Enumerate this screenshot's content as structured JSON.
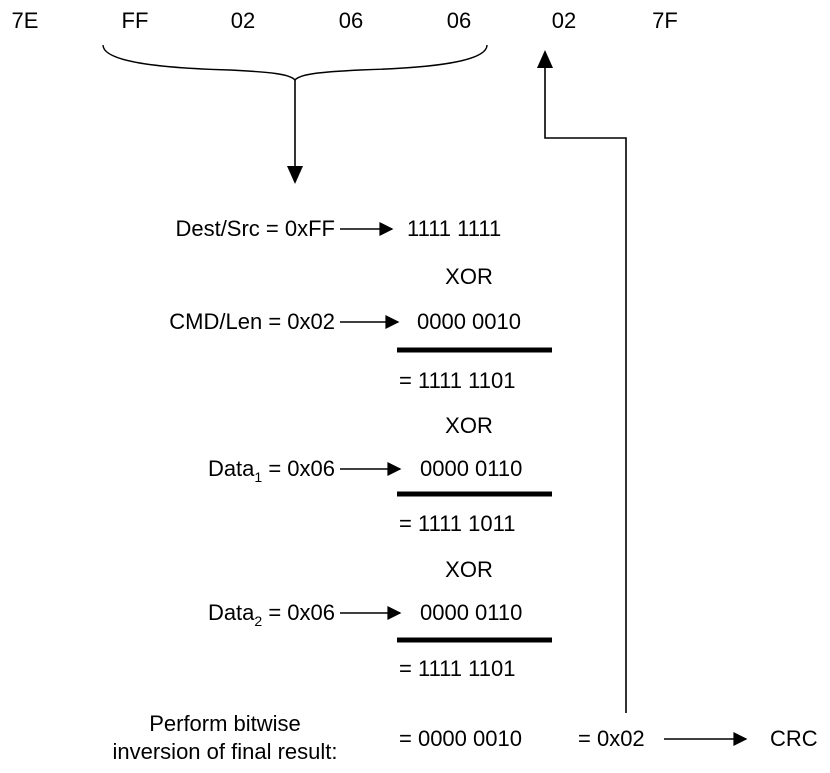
{
  "frame_bytes": [
    "7E",
    "FF",
    "02",
    "06",
    "06",
    "02",
    "7F"
  ],
  "rows": {
    "dest_src": {
      "label": "Dest/Src = 0xFF",
      "value": "1111 1111"
    },
    "xor1": "XOR",
    "cmd_len": {
      "label": "CMD/Len = 0x02",
      "value": "0000 0010"
    },
    "result1": "= 1111 1101",
    "xor2": "XOR",
    "data1": {
      "label_prefix": "Data",
      "label_sub": "1",
      "label_suffix": " = 0x06",
      "value": "0000 0110"
    },
    "result2": "= 1111 1011",
    "xor3": "XOR",
    "data2": {
      "label_prefix": "Data",
      "label_sub": "2",
      "label_suffix": " = 0x06",
      "value": "0000 0110"
    },
    "result3": "= 1111 1101"
  },
  "final": {
    "caption_line1": "Perform bitwise",
    "caption_line2": "inversion of final result:",
    "inverted": "= 0000 0010",
    "hex": "= 0x02",
    "target": "CRC"
  }
}
